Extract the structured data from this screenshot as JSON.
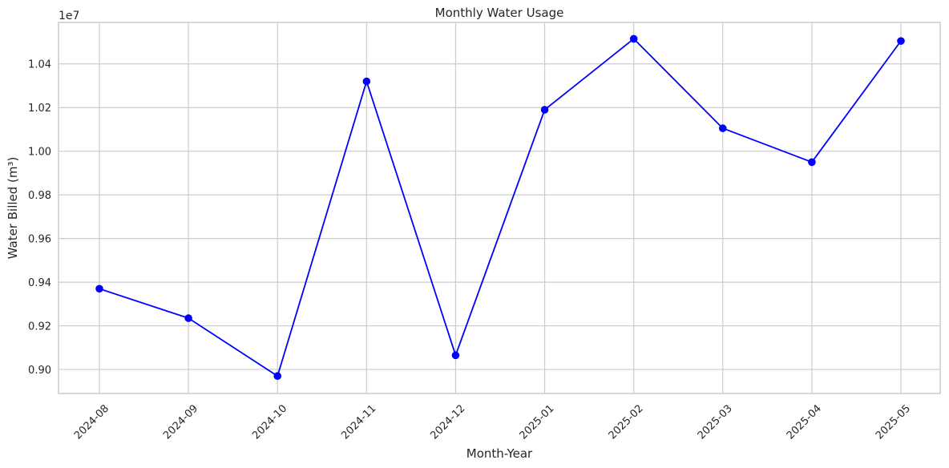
{
  "chart_data": {
    "type": "line",
    "title": "Monthly Water Usage",
    "xlabel": "Month-Year",
    "ylabel": "Water Billed (m³)",
    "y_offset_label": "1e7",
    "categories": [
      "2024-08",
      "2024-09",
      "2024-10",
      "2024-11",
      "2024-12",
      "2025-01",
      "2025-02",
      "2025-03",
      "2025-04",
      "2025-05"
    ],
    "series": [
      {
        "values": [
          9370000,
          9235000,
          8970000,
          10320000,
          9065000,
          10190000,
          10515000,
          10105000,
          9950000,
          10505000
        ],
        "color": "#0000ff",
        "marker": "circle"
      }
    ],
    "y_ticks": [
      9000000,
      9200000,
      9400000,
      9600000,
      9800000,
      10000000,
      10200000,
      10400000
    ],
    "y_tick_labels": [
      "0.90",
      "0.92",
      "0.94",
      "0.96",
      "0.98",
      "1.00",
      "1.02",
      "1.04"
    ],
    "ylim": [
      8890000,
      10590000
    ],
    "grid": true,
    "x_tick_rotation_deg": 45
  }
}
